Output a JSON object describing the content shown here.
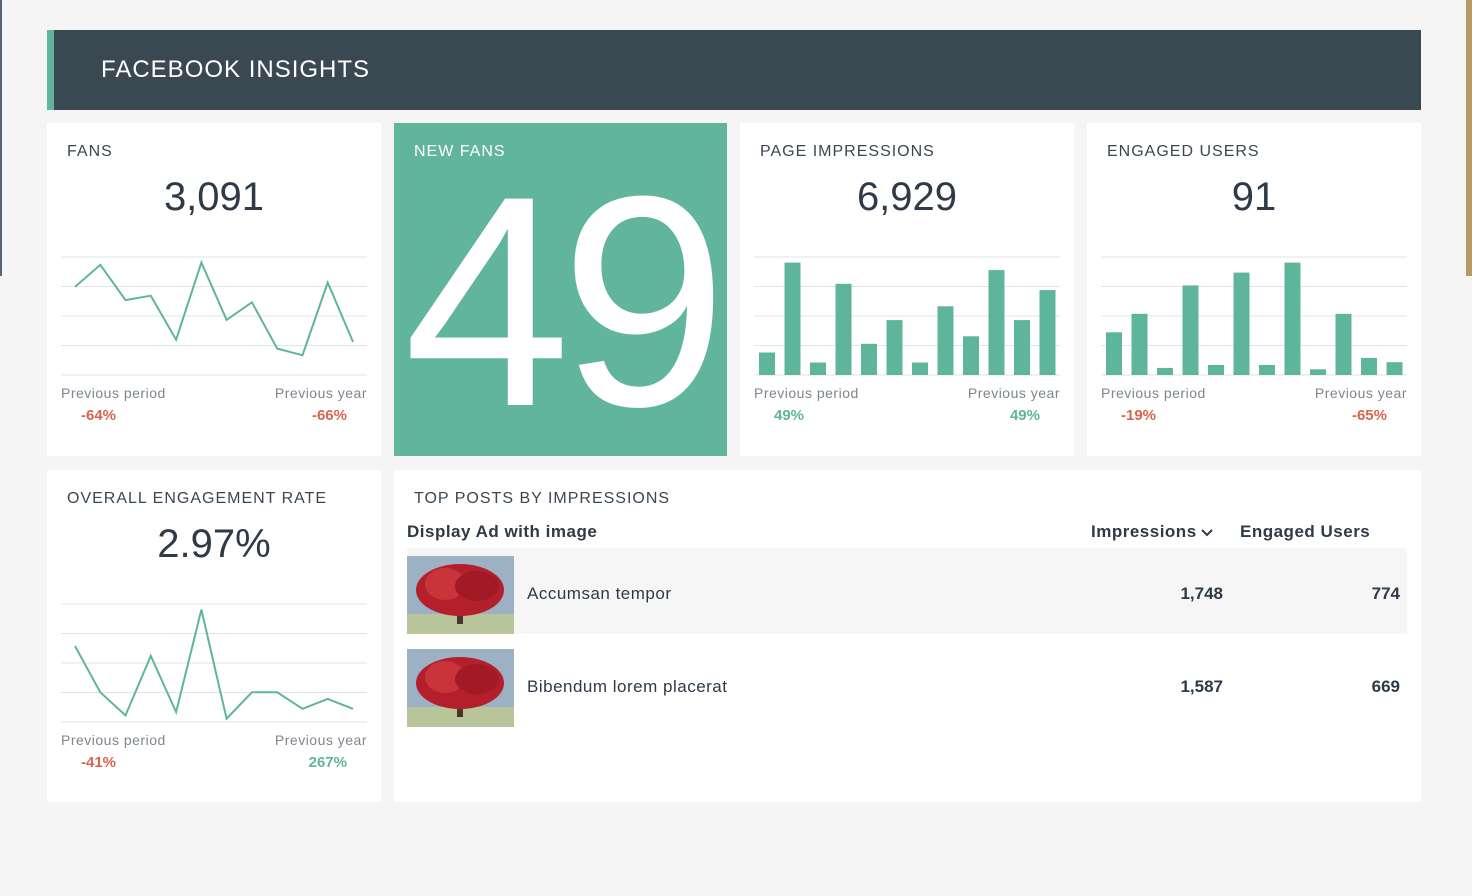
{
  "header": {
    "title": "FACEBOOK INSIGHTS"
  },
  "colors": {
    "accent": "#5fb59b",
    "header_bg": "#3a4852",
    "negative": "#d9644d",
    "positive": "#5fb59b"
  },
  "labels": {
    "previous_period": "Previous period",
    "previous_year": "Previous year"
  },
  "fans": {
    "label": "FANS",
    "value": "3,091",
    "previous_period": "-64%",
    "previous_year": "-66%",
    "trend": [
      4,
      5,
      3.4,
      3.6,
      1.6,
      5.1,
      2.5,
      3.3,
      1.2,
      0.9,
      4.2,
      1.5
    ]
  },
  "new_fans": {
    "label": "NEW FANS",
    "value": "49"
  },
  "page_impressions": {
    "label": "PAGE IMPRESSIONS",
    "value": "6,929",
    "previous_period": "49%",
    "previous_year": "49%",
    "bars": [
      1.8,
      9,
      1,
      7.3,
      2.5,
      4.4,
      1,
      5.5,
      3.1,
      8.4,
      4.4,
      6.8
    ]
  },
  "engaged_users": {
    "label": "ENGAGED USERS",
    "value": "91",
    "previous_period": "-19%",
    "previous_year": "-65%",
    "bars": [
      3,
      4.3,
      0.5,
      6.3,
      0.7,
      7.2,
      0.7,
      7.9,
      0.4,
      4.3,
      1.2,
      0.9
    ]
  },
  "engagement_rate": {
    "label": "OVERALL ENGAGEMENT RATE",
    "value": "2.97%",
    "previous_period": "-41%",
    "previous_year": "267%",
    "trend": [
      2.3,
      0.9,
      0.2,
      2,
      0.3,
      3.4,
      0.1,
      0.9,
      0.9,
      0.4,
      0.7,
      0.4
    ]
  },
  "top_posts": {
    "label": "TOP POSTS BY IMPRESSIONS",
    "columns": {
      "post": "Display Ad with image",
      "impressions": "Impressions",
      "engaged": "Engaged Users"
    },
    "sort_icon": "chevron-down-icon",
    "rows": [
      {
        "title": "Accumsan tempor",
        "impressions": "1,748",
        "engaged": "774"
      },
      {
        "title": "Bibendum lorem placerat",
        "impressions": "1,587",
        "engaged": "669"
      }
    ]
  }
}
